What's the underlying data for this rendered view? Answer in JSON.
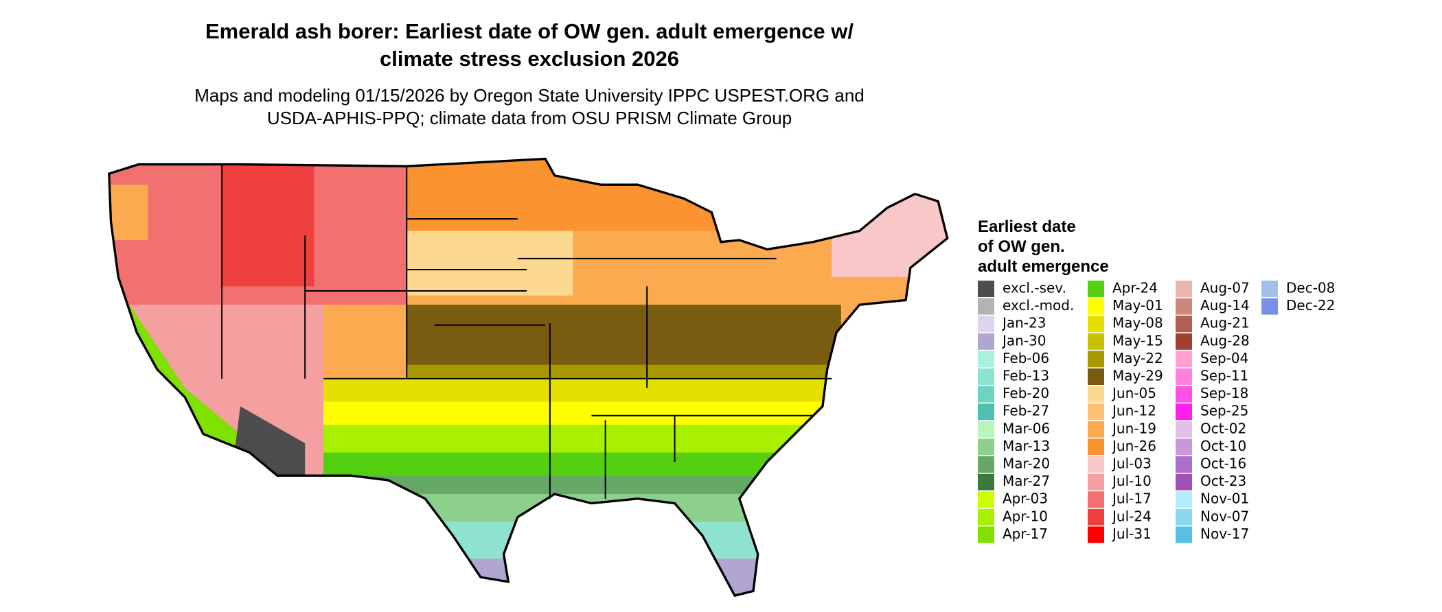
{
  "header": {
    "title_lines": [
      "Emerald ash borer: Earliest date of OW gen. adult emergence w/",
      "climate stress exclusion 2026"
    ],
    "subtitle_lines": [
      "Maps and modeling 01/15/2026 by Oregon State University IPPC USPEST.ORG and",
      "USDA-APHIS-PPQ; climate data from OSU PRISM Climate Group"
    ]
  },
  "legend": {
    "title_lines": [
      "Earliest date",
      "of OW gen.",
      "adult emergence"
    ],
    "items": [
      {
        "label": "excl.-sev.",
        "color": "#4d4d4d"
      },
      {
        "label": "excl.-mod.",
        "color": "#b3b3b3"
      },
      {
        "label": "Jan-23",
        "color": "#ddd5ee"
      },
      {
        "label": "Jan-30",
        "color": "#b0a6d0"
      },
      {
        "label": "Feb-06",
        "color": "#a8f0e0"
      },
      {
        "label": "Feb-13",
        "color": "#8ee3d0"
      },
      {
        "label": "Feb-20",
        "color": "#6cd4c0"
      },
      {
        "label": "Feb-27",
        "color": "#4ec0b0"
      },
      {
        "label": "Mar-06",
        "color": "#b8f5b8"
      },
      {
        "label": "Mar-13",
        "color": "#8cd08c"
      },
      {
        "label": "Mar-20",
        "color": "#66a866"
      },
      {
        "label": "Mar-27",
        "color": "#3a7a3a"
      },
      {
        "label": "Apr-03",
        "color": "#ccff00"
      },
      {
        "label": "Apr-10",
        "color": "#a8f000"
      },
      {
        "label": "Apr-17",
        "color": "#80e000"
      },
      {
        "label": "Apr-24",
        "color": "#55d010"
      },
      {
        "label": "May-01",
        "color": "#ffff00"
      },
      {
        "label": "May-08",
        "color": "#e5e000"
      },
      {
        "label": "May-15",
        "color": "#c8c000"
      },
      {
        "label": "May-22",
        "color": "#a89800"
      },
      {
        "label": "May-29",
        "color": "#7a5c10"
      },
      {
        "label": "Jun-05",
        "color": "#fdd890"
      },
      {
        "label": "Jun-12",
        "color": "#fcc070"
      },
      {
        "label": "Jun-19",
        "color": "#fcaa50"
      },
      {
        "label": "Jun-26",
        "color": "#fb9430"
      },
      {
        "label": "Jul-03",
        "color": "#f8c8c8"
      },
      {
        "label": "Jul-10",
        "color": "#f4a0a0"
      },
      {
        "label": "Jul-17",
        "color": "#f27070"
      },
      {
        "label": "Jul-24",
        "color": "#f04040"
      },
      {
        "label": "Jul-31",
        "color": "#ff0000"
      },
      {
        "label": "Aug-07",
        "color": "#e8b8b0"
      },
      {
        "label": "Aug-14",
        "color": "#cc8878"
      },
      {
        "label": "Aug-21",
        "color": "#b06050"
      },
      {
        "label": "Aug-28",
        "color": "#a04030"
      },
      {
        "label": "Sep-04",
        "color": "#ffa0d0"
      },
      {
        "label": "Sep-11",
        "color": "#ff80e0"
      },
      {
        "label": "Sep-18",
        "color": "#ff50e8"
      },
      {
        "label": "Sep-25",
        "color": "#ff20f0"
      },
      {
        "label": "Oct-02",
        "color": "#e0c0e8"
      },
      {
        "label": "Oct-10",
        "color": "#c898d8"
      },
      {
        "label": "Oct-16",
        "color": "#b070c8"
      },
      {
        "label": "Oct-23",
        "color": "#a050b8"
      },
      {
        "label": "Nov-01",
        "color": "#b0eeff"
      },
      {
        "label": "Nov-07",
        "color": "#88d8f0"
      },
      {
        "label": "Nov-17",
        "color": "#58c0e8"
      },
      {
        "label": "Dec-08",
        "color": "#a0c0e8"
      },
      {
        "label": "Dec-22",
        "color": "#7890e8"
      }
    ]
  }
}
